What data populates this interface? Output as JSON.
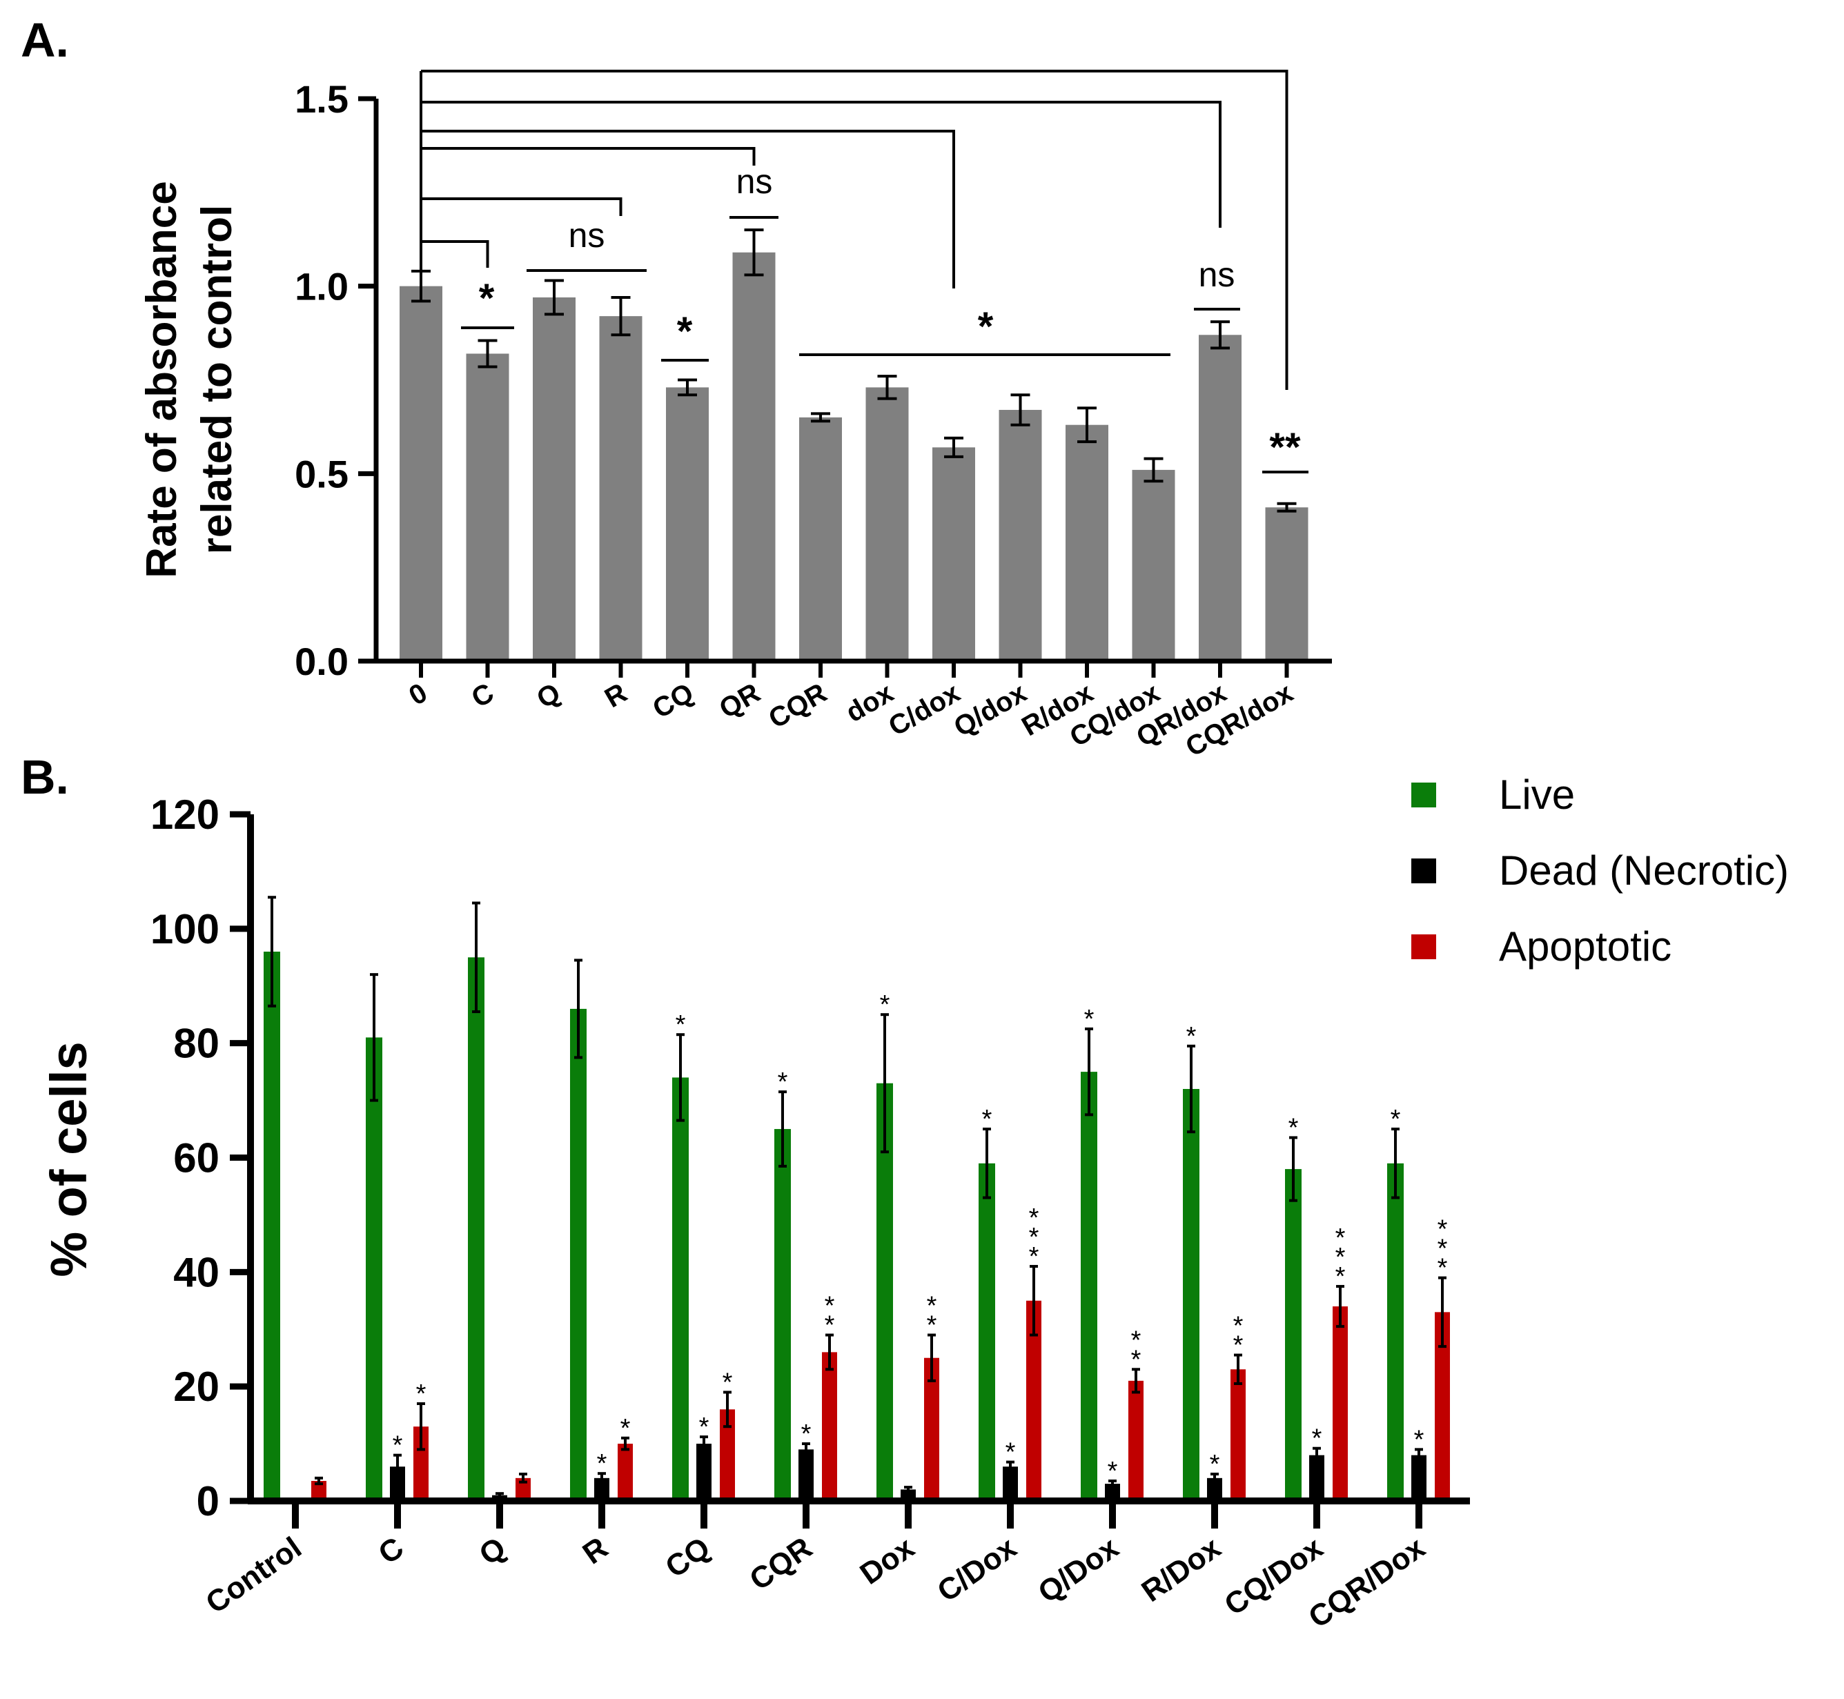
{
  "chart_data": [
    {
      "panel": "A.",
      "type": "bar",
      "ylabel": "Rate of absorbance related to control",
      "ylim": [
        0,
        1.5
      ],
      "yticks": [
        "0.0",
        "0.5",
        "1.0",
        "1.5"
      ],
      "ytick_values": [
        0,
        0.5,
        1.0,
        1.5
      ],
      "categories": [
        "0",
        "C",
        "Q",
        "R",
        "CQ",
        "QR",
        "CQR",
        "dox",
        "C/dox",
        "Q/dox",
        "R/dox",
        "CQ/dox",
        "QR/dox",
        "CQR/dox"
      ],
      "values": [
        1.0,
        0.82,
        0.97,
        0.92,
        0.73,
        1.09,
        0.65,
        0.73,
        0.57,
        0.67,
        0.63,
        0.51,
        0.87,
        0.41
      ],
      "errors": [
        0.04,
        0.035,
        0.045,
        0.05,
        0.02,
        0.06,
        0.01,
        0.03,
        0.025,
        0.04,
        0.045,
        0.03,
        0.035,
        0.01
      ],
      "bar_color": "#808080",
      "significance": [
        {
          "label": "*",
          "category_span": [
            "C",
            "C"
          ]
        },
        {
          "label": "ns",
          "category_span": [
            "Q",
            "R"
          ]
        },
        {
          "label": "*",
          "category_span": [
            "CQ",
            "CQ"
          ]
        },
        {
          "label": "ns",
          "category_span": [
            "QR",
            "QR"
          ]
        },
        {
          "label": "*",
          "category_span": [
            "CQR",
            "CQ/dox"
          ]
        },
        {
          "label": "ns",
          "category_span": [
            "QR/dox",
            "QR/dox"
          ]
        },
        {
          "label": "**",
          "category_span": [
            "CQR/dox",
            "CQR/dox"
          ]
        }
      ],
      "comparisons_from": "0",
      "comparisons_to": [
        "C",
        "R",
        "QR",
        "C/dox",
        "QR/dox",
        "CQR/dox"
      ]
    },
    {
      "panel": "B.",
      "type": "bar",
      "ylabel": "% of cells",
      "ylim": [
        0,
        120
      ],
      "yticks": [
        "0",
        "20",
        "40",
        "60",
        "80",
        "100",
        "120"
      ],
      "ytick_values": [
        0,
        20,
        40,
        60,
        80,
        100,
        120
      ],
      "categories": [
        "Control",
        "C",
        "Q",
        "R",
        "CQ",
        "CQR",
        "Dox",
        "C/Dox",
        "Q/Dox",
        "R/Dox",
        "CQ/Dox",
        "CQR/Dox"
      ],
      "series": [
        {
          "name": "Live",
          "color": "#0a7d0a",
          "values": [
            96,
            81,
            95,
            86,
            74,
            65,
            73,
            59,
            75,
            72,
            58,
            59
          ],
          "errors": [
            9.5,
            11,
            9.5,
            8.5,
            7.5,
            6.5,
            12,
            6,
            7.5,
            7.5,
            5.5,
            6
          ],
          "stars": [
            "",
            "",
            "",
            "",
            "*",
            "*",
            "*",
            "*",
            "*",
            "*",
            "*",
            "*"
          ]
        },
        {
          "name": "Dead (Necrotic)",
          "color": "#000000",
          "values": [
            0,
            6,
            1,
            4,
            10,
            9,
            2,
            6,
            3,
            4,
            8,
            8
          ],
          "errors": [
            0,
            2,
            0.3,
            0.8,
            1.2,
            1,
            0.4,
            0.8,
            0.5,
            0.7,
            1.2,
            1
          ],
          "stars": [
            "",
            "*",
            "",
            "*",
            "*",
            "*",
            "",
            "*",
            "*",
            "*",
            "*",
            "*"
          ]
        },
        {
          "name": "Apoptotic",
          "color": "#c00000",
          "values": [
            3.5,
            13,
            4,
            10,
            16,
            26,
            25,
            35,
            21,
            23,
            34,
            33
          ],
          "errors": [
            0.5,
            4,
            0.7,
            1,
            3,
            3,
            4,
            6,
            2,
            2.5,
            3.5,
            6
          ],
          "stars": [
            "",
            "*",
            "",
            "*",
            "*",
            "**",
            "**",
            "***",
            "**",
            "**",
            "***",
            "***"
          ]
        }
      ],
      "legend": [
        "Live",
        "Dead (Necrotic)",
        "Apoptotic"
      ],
      "legend_position": "top-right"
    }
  ]
}
